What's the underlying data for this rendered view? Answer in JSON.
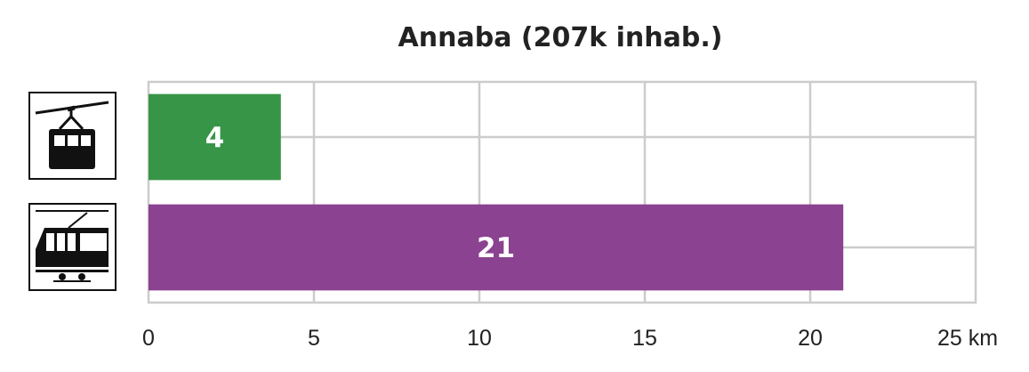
{
  "chart_data": {
    "type": "bar",
    "orientation": "horizontal",
    "title": "Annaba (207k inhab.)",
    "categories": [
      "cable car",
      "tram"
    ],
    "category_icons": [
      "aerial-tramway-icon",
      "tram-icon"
    ],
    "values": [
      4,
      21
    ],
    "value_labels": [
      "4",
      "21"
    ],
    "bar_colors": [
      "#379547",
      "#8b4290"
    ],
    "xlim": [
      0,
      25
    ],
    "xticks": [
      0,
      5,
      10,
      15,
      20,
      25
    ],
    "xtick_labels": [
      "0",
      "5",
      "10",
      "15",
      "20",
      "25 km"
    ],
    "grid": true,
    "legend": "none"
  }
}
